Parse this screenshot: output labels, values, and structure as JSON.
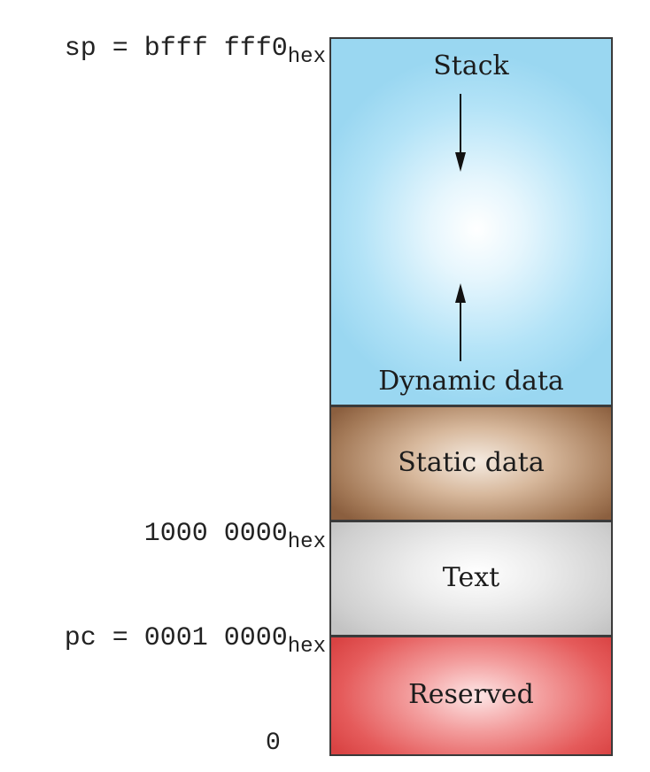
{
  "addresses": {
    "sp": {
      "text": "sp = bfff fff0",
      "sub": "hex"
    },
    "static_base": {
      "text": "1000 0000",
      "sub": "hex"
    },
    "pc": {
      "text": "pc = 0001 0000",
      "sub": "hex"
    },
    "zero": "0"
  },
  "segments": {
    "stack": "Stack",
    "dynamic": "Dynamic data",
    "static": "Static data",
    "text": "Text",
    "reserved": "Reserved"
  },
  "colors": {
    "stack": "#a8def4",
    "static": "#9c7252",
    "text": "#d0d0d0",
    "reserved": "#e04a4a",
    "border": "#3a3a3a"
  }
}
